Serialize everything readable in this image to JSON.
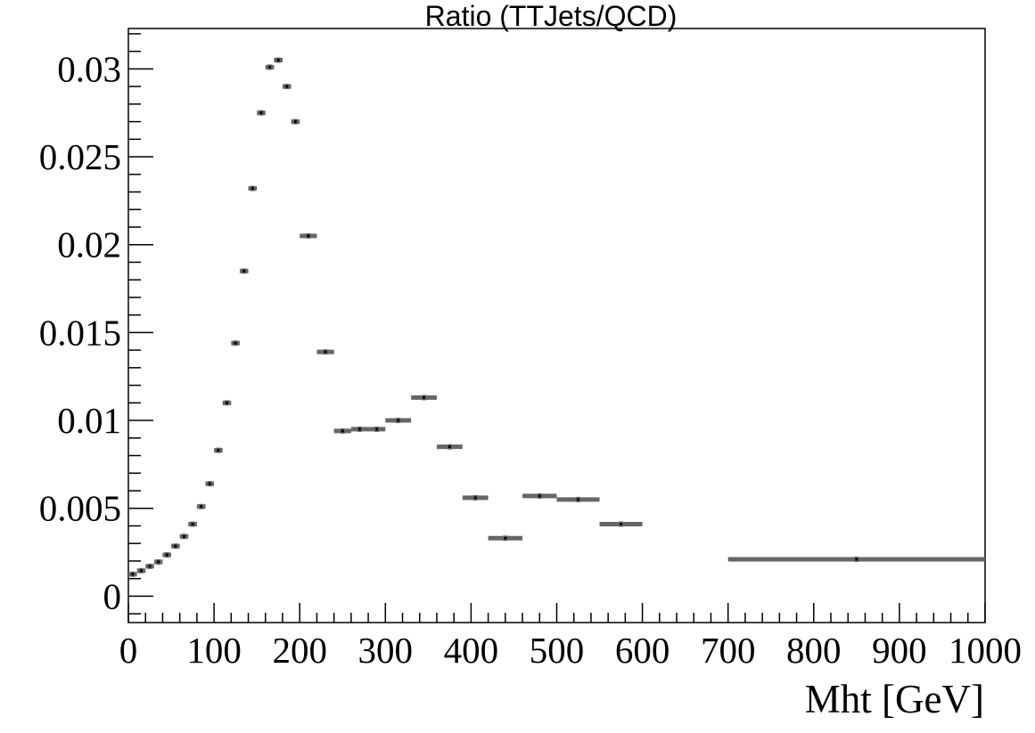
{
  "chart_data": {
    "type": "scatter",
    "title": "Ratio (TTJets/QCD)",
    "xlabel": "Mht [GeV]",
    "ylabel": "",
    "xlim": [
      0,
      1000
    ],
    "ylim": [
      -0.0015,
      0.0323
    ],
    "x_major_ticks": [
      0,
      100,
      200,
      300,
      400,
      500,
      600,
      700,
      800,
      900,
      1000
    ],
    "x_tick_labels": [
      "0",
      "100",
      "200",
      "300",
      "400",
      "500",
      "600",
      "700",
      "800",
      "900",
      "1000"
    ],
    "y_major_ticks": [
      0,
      0.005,
      0.01,
      0.015,
      0.02,
      0.025,
      0.03
    ],
    "y_tick_labels": [
      "0",
      "0.005",
      "0.01",
      "0.015",
      "0.02",
      "0.025",
      "0.03"
    ],
    "grid": false,
    "marker_color": "#666666",
    "series": [
      {
        "points": [
          {
            "x": 5,
            "xerr": 5,
            "y": 0.00125,
            "yerr": 5e-05
          },
          {
            "x": 15,
            "xerr": 5,
            "y": 0.00145,
            "yerr": 5e-05
          },
          {
            "x": 25,
            "xerr": 5,
            "y": 0.0017,
            "yerr": 5e-05
          },
          {
            "x": 35,
            "xerr": 5,
            "y": 0.00195,
            "yerr": 5e-05
          },
          {
            "x": 45,
            "xerr": 5,
            "y": 0.00235,
            "yerr": 5e-05
          },
          {
            "x": 55,
            "xerr": 5,
            "y": 0.00285,
            "yerr": 5e-05
          },
          {
            "x": 65,
            "xerr": 5,
            "y": 0.0034,
            "yerr": 5e-05
          },
          {
            "x": 75,
            "xerr": 5,
            "y": 0.0041,
            "yerr": 5e-05
          },
          {
            "x": 85,
            "xerr": 5,
            "y": 0.0051,
            "yerr": 5e-05
          },
          {
            "x": 95,
            "xerr": 5,
            "y": 0.0064,
            "yerr": 5e-05
          },
          {
            "x": 105,
            "xerr": 5,
            "y": 0.0083,
            "yerr": 5e-05
          },
          {
            "x": 115,
            "xerr": 5,
            "y": 0.011,
            "yerr": 6e-05
          },
          {
            "x": 125,
            "xerr": 5,
            "y": 0.0144,
            "yerr": 7e-05
          },
          {
            "x": 135,
            "xerr": 5,
            "y": 0.0185,
            "yerr": 8e-05
          },
          {
            "x": 145,
            "xerr": 5,
            "y": 0.0232,
            "yerr": 0.0001
          },
          {
            "x": 155,
            "xerr": 5,
            "y": 0.0275,
            "yerr": 0.00012
          },
          {
            "x": 165,
            "xerr": 5,
            "y": 0.0301,
            "yerr": 0.00015
          },
          {
            "x": 175,
            "xerr": 5,
            "y": 0.0305,
            "yerr": 0.0002
          },
          {
            "x": 185,
            "xerr": 5,
            "y": 0.029,
            "yerr": 0.00025
          },
          {
            "x": 195,
            "xerr": 5,
            "y": 0.027,
            "yerr": 0.0003
          },
          {
            "x": 210,
            "xerr": 10,
            "y": 0.0205,
            "yerr": 0.0003
          },
          {
            "x": 230,
            "xerr": 10,
            "y": 0.0139,
            "yerr": 0.0004
          },
          {
            "x": 250,
            "xerr": 10,
            "y": 0.0094,
            "yerr": 0.0004
          },
          {
            "x": 270,
            "xerr": 10,
            "y": 0.0095,
            "yerr": 0.0005
          },
          {
            "x": 290,
            "xerr": 10,
            "y": 0.0095,
            "yerr": 0.0008
          },
          {
            "x": 315,
            "xerr": 15,
            "y": 0.01,
            "yerr": 0.0009
          },
          {
            "x": 345,
            "xerr": 15,
            "y": 0.0113,
            "yerr": 0.0013
          },
          {
            "x": 375,
            "xerr": 15,
            "y": 0.0085,
            "yerr": 0.0012
          },
          {
            "x": 405,
            "xerr": 15,
            "y": 0.0056,
            "yerr": 0.0012
          },
          {
            "x": 440,
            "xerr": 20,
            "y": 0.0033,
            "yerr": 0.001
          },
          {
            "x": 480,
            "xerr": 20,
            "y": 0.0057,
            "yerr": 0.0019
          },
          {
            "x": 525,
            "xerr": 25,
            "y": 0.0055,
            "yerr": 0.0023
          },
          {
            "x": 575,
            "xerr": 25,
            "y": 0.0041,
            "yerr": 0.0024
          },
          {
            "x": 850,
            "xerr": 150,
            "y": 0.0021,
            "yerr": 0.0021
          }
        ]
      }
    ]
  }
}
